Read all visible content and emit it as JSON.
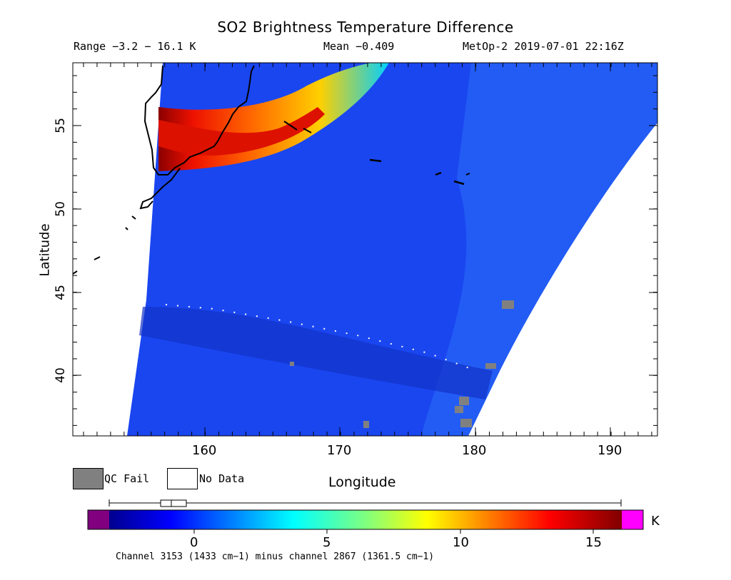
{
  "header": {
    "title": "SO2 Brightness Temperature Difference",
    "range_text": "Range −3.2 − 16.1 K",
    "mean_text": "Mean −0.409",
    "satellite_time": "MetOp-2 2019-07-01 22:16Z"
  },
  "axes": {
    "xlabel": "Longitude",
    "ylabel": "Latitude",
    "xticks": [
      "160",
      "170",
      "180",
      "190"
    ],
    "yticks": [
      "55",
      "50",
      "45",
      "40"
    ]
  },
  "legend": {
    "qc_fail": "QC Fail",
    "no_data": "No Data",
    "qc_fail_color": "#808080",
    "no_data_color": "#ffffff"
  },
  "colorbar": {
    "unit": "K",
    "ticks": [
      "0",
      "5",
      "10",
      "15"
    ],
    "underflow_color": "#800080",
    "overflow_color": "#ff00ff",
    "footer": "Channel 3153 (1433 cm−1) minus channel 2867 (1361.5 cm−1)"
  },
  "chart_data": {
    "type": "heatmap",
    "title": "SO2 Brightness Temperature Difference",
    "xlabel": "Longitude",
    "ylabel": "Latitude",
    "xlim": [
      150,
      193.5
    ],
    "ylim": [
      36.5,
      58.8
    ],
    "value_range": [
      -3.2,
      16.1
    ],
    "mean": -0.409,
    "colorbar_range": [
      -3.3,
      16
    ],
    "units": "K"
  }
}
